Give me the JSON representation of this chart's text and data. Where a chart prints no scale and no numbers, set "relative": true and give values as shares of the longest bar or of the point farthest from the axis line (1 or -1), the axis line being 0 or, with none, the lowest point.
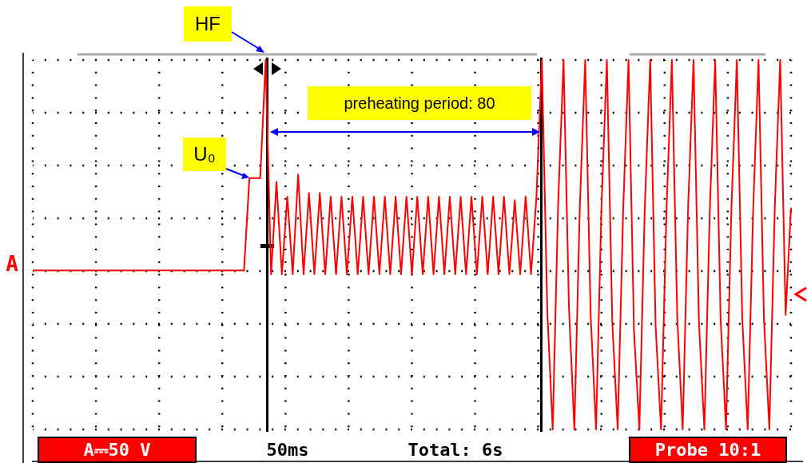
{
  "chart_data": {
    "type": "line",
    "relative": true,
    "grid": true,
    "categories": [
      null,
      null,
      null,
      null,
      null,
      null,
      null,
      null,
      null,
      null,
      null,
      null,
      null,
      null,
      null,
      null,
      null,
      null,
      null,
      null,
      null,
      null,
      null,
      null,
      null,
      null,
      null,
      null,
      null,
      null,
      null,
      null,
      null,
      null,
      null,
      null,
      null,
      null,
      null,
      null,
      null,
      null,
      null,
      null,
      null,
      null,
      null,
      null,
      null,
      null,
      null,
      null,
      null,
      null,
      null,
      null,
      null,
      null,
      null,
      null,
      null,
      null,
      null,
      null,
      null,
      null,
      null,
      null,
      null,
      null,
      null,
      null,
      null,
      null,
      null,
      null,
      null,
      null,
      null,
      null,
      null,
      null,
      null,
      null,
      null,
      null,
      null,
      null,
      null,
      null,
      null,
      null,
      null,
      null,
      null,
      null,
      null,
      null,
      null,
      null,
      null,
      null,
      null,
      null,
      null,
      null,
      null,
      null,
      null,
      null,
      null,
      null,
      null,
      null,
      null,
      null,
      null,
      null,
      null,
      null,
      null,
      null,
      null,
      null,
      null,
      null,
      null,
      null,
      null,
      null,
      null,
      null,
      null,
      null,
      null,
      null,
      null,
      null,
      null,
      null,
      null
    ],
    "series": [
      {
        "color": "#ff0000",
        "values": [
          0.43,
          0.43,
          0.43,
          0.43,
          0.43,
          0.43,
          0.43,
          0.43,
          0.43,
          0.43,
          0.43,
          0.43,
          0.43,
          0.43,
          0.43,
          0.43,
          0.43,
          0.43,
          0.43,
          0.43,
          0.43,
          0.43,
          0.43,
          0.43,
          0.43,
          0.43,
          0.43,
          0.43,
          0.43,
          0.43,
          0.43,
          0.43,
          0.43,
          0.43,
          0.43,
          0.43,
          0.43,
          0.43,
          0.43,
          0.43,
          0.68,
          0.68,
          0.68,
          1.0,
          0.42,
          0.67,
          0.42,
          0.63,
          0.42,
          0.69,
          0.42,
          0.64,
          0.42,
          0.64,
          0.42,
          0.63,
          0.42,
          0.63,
          0.42,
          0.63,
          0.42,
          0.63,
          0.42,
          0.63,
          0.42,
          0.63,
          0.42,
          0.63,
          0.42,
          0.63,
          0.42,
          0.63,
          0.42,
          0.63,
          0.42,
          0.63,
          0.42,
          0.63,
          0.42,
          0.63,
          0.42,
          0.63,
          0.42,
          0.63,
          0.42,
          0.63,
          0.42,
          0.63,
          0.42,
          0.62,
          0.42,
          0.63,
          0.42,
          0.63,
          1.0,
          0.32,
          0.0,
          0.61,
          1.0,
          0.33,
          0.0,
          0.6,
          1.0,
          0.31,
          0.0,
          0.6,
          1.0,
          0.29,
          0.0,
          0.59,
          1.0,
          0.27,
          0.0,
          0.6,
          1.0,
          0.28,
          0.0,
          0.59,
          1.0,
          0.3,
          0.0,
          0.6,
          1.0,
          0.29,
          0.0,
          0.59,
          1.0,
          0.3,
          0.0,
          0.6,
          1.0,
          0.3,
          0.0,
          0.59,
          1.0,
          0.3,
          0.0,
          0.6,
          1.0,
          0.31,
          0.6
        ]
      }
    ],
    "annotations": [
      "HF",
      "U₀",
      "preheating period: 80",
      "A⎓50 V",
      "50ms",
      "Total: 6s",
      "Probe 10:1",
      "A"
    ]
  }
}
